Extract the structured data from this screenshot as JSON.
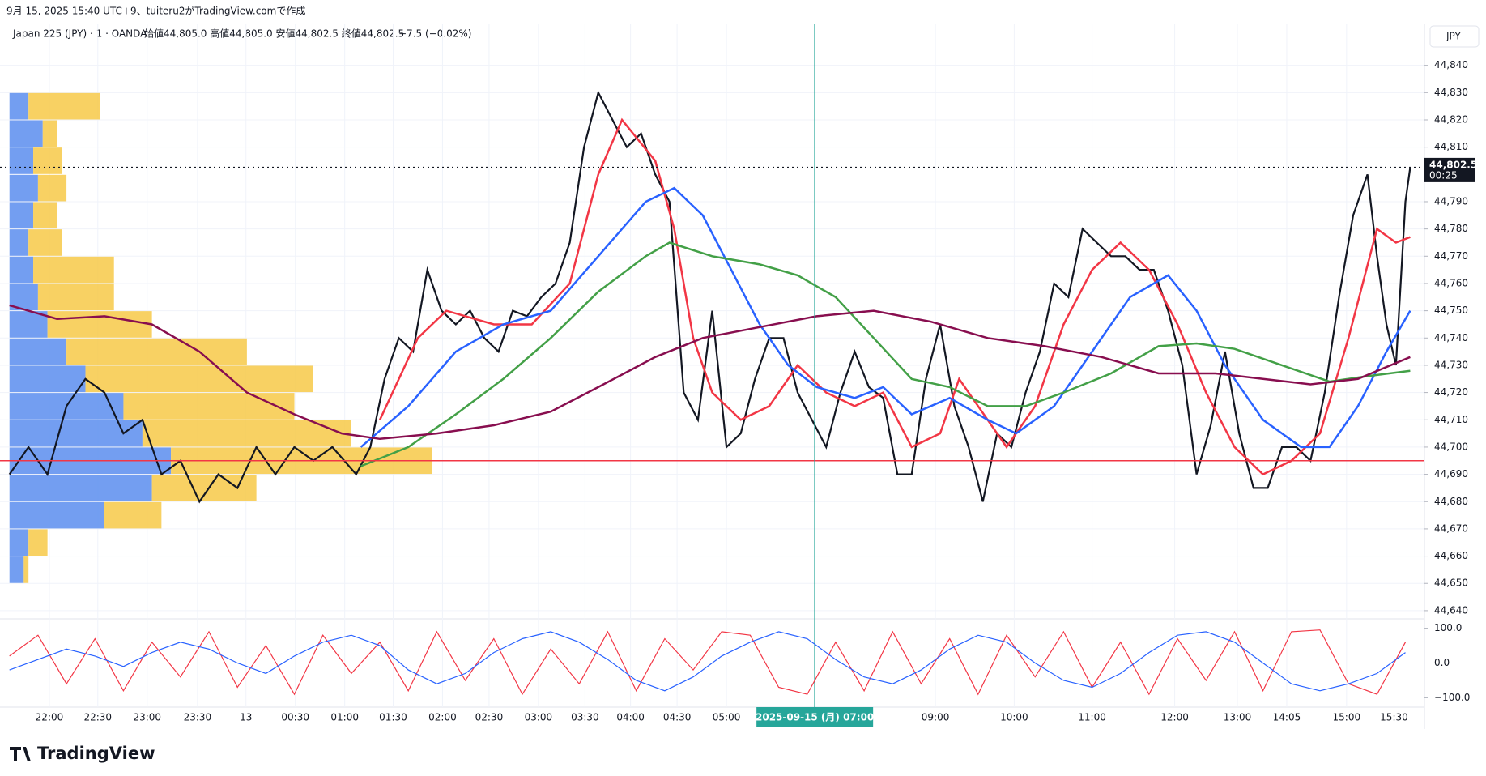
{
  "header": {
    "created": "9月 15, 2025 15:40 UTC+9、tuiteru2がTradingView.comで作成",
    "legend": "Japan 225 (JPY) · 1 · OANDA",
    "ohlc": "始値44,805.0 高値44,805.0 安値44,802.5 終値44,802.5",
    "change": "−7.5 (−0.02%)",
    "currency": "JPY",
    "brand": "TradingView"
  },
  "chart_data": [
    {
      "type": "line",
      "xlim": [
        0,
        1500
      ],
      "ylim": [
        44637,
        44850
      ],
      "yticks": [
        {
          "value": 44640,
          "label": "44,640"
        },
        {
          "value": 44650,
          "label": "44,650"
        },
        {
          "value": 44660,
          "label": "44,660"
        },
        {
          "value": 44670,
          "label": "44,670"
        },
        {
          "value": 44680,
          "label": "44,680"
        },
        {
          "value": 44690,
          "label": "44,690"
        },
        {
          "value": 44700,
          "label": "44,700"
        },
        {
          "value": 44710,
          "label": "44,710"
        },
        {
          "value": 44720,
          "label": "44,720"
        },
        {
          "value": 44730,
          "label": "44,730"
        },
        {
          "value": 44740,
          "label": "44,740"
        },
        {
          "value": 44750,
          "label": "44,750"
        },
        {
          "value": 44760,
          "label": "44,760"
        },
        {
          "value": 44770,
          "label": "44,770"
        },
        {
          "value": 44780,
          "label": "44,780"
        },
        {
          "value": 44790,
          "label": "44,790"
        },
        {
          "value": 44810,
          "label": "44,810"
        },
        {
          "value": 44820,
          "label": "44,820"
        },
        {
          "value": 44830,
          "label": "44,830"
        },
        {
          "value": 44840,
          "label": "44,840"
        }
      ],
      "xticks": [
        {
          "value": 52,
          "label": "22:00"
        },
        {
          "value": 103,
          "label": "22:30"
        },
        {
          "value": 155,
          "label": "23:00"
        },
        {
          "value": 208,
          "label": "23:30"
        },
        {
          "value": 259,
          "label": "13"
        },
        {
          "value": 311,
          "label": "00:30"
        },
        {
          "value": 363,
          "label": "01:00"
        },
        {
          "value": 414,
          "label": "01:30"
        },
        {
          "value": 466,
          "label": "02:00"
        },
        {
          "value": 515,
          "label": "02:30"
        },
        {
          "value": 567,
          "label": "03:00"
        },
        {
          "value": 616,
          "label": "03:30"
        },
        {
          "value": 664,
          "label": "04:00"
        },
        {
          "value": 713,
          "label": "04:30"
        },
        {
          "value": 765,
          "label": "05:00"
        },
        {
          "value": 985,
          "label": "09:00"
        },
        {
          "value": 1068,
          "label": "10:00"
        },
        {
          "value": 1150,
          "label": "11:00"
        },
        {
          "value": 1237,
          "label": "12:00"
        },
        {
          "value": 1303,
          "label": "13:00"
        },
        {
          "value": 1355,
          "label": "14:05"
        },
        {
          "value": 1418,
          "label": "15:00"
        },
        {
          "value": 1468,
          "label": "15:30"
        }
      ],
      "grid": true,
      "crosshair": {
        "x": 858,
        "label": "2025-09-15 (月)  07:00",
        "color": "#26a69a"
      },
      "last_price": {
        "value": 44802.5,
        "label": "44,802.5",
        "countdown": "00:25"
      },
      "level_line": {
        "value": 44695,
        "color": "#f23645"
      },
      "volume_profile": {
        "colors": [
          "#5b8def",
          "#f7c948"
        ],
        "levels": [
          44655,
          44665,
          44675,
          44685,
          44695,
          44705,
          44715,
          44725,
          44735,
          44745,
          44755,
          44765,
          44775,
          44785,
          44795,
          44805,
          44815,
          44825
        ],
        "step": 10,
        "down": [
          15,
          20,
          100,
          150,
          170,
          140,
          120,
          80,
          60,
          40,
          30,
          25,
          20,
          25,
          30,
          25,
          35,
          20
        ],
        "up": [
          5,
          20,
          60,
          110,
          275,
          220,
          180,
          240,
          190,
          110,
          80,
          85,
          35,
          25,
          30,
          30,
          15,
          75
        ]
      },
      "series": [
        {
          "color": "#131722",
          "x": [
            10,
            30,
            50,
            70,
            90,
            110,
            130,
            150,
            170,
            190,
            210,
            230,
            250,
            270,
            290,
            310,
            330,
            350,
            375,
            390,
            405,
            420,
            435,
            450,
            465,
            480,
            495,
            510,
            525,
            540,
            555,
            570,
            585,
            600,
            615,
            630,
            645,
            660,
            675,
            690,
            705,
            720,
            735,
            750,
            765,
            780,
            795,
            810,
            825,
            840,
            855,
            870,
            885,
            900,
            915,
            930,
            945,
            960,
            975,
            990,
            1005,
            1020,
            1035,
            1050,
            1065,
            1080,
            1095,
            1110,
            1125,
            1140,
            1155,
            1170,
            1185,
            1200,
            1215,
            1230,
            1245,
            1260,
            1275,
            1290,
            1305,
            1320,
            1335,
            1350,
            1365,
            1380,
            1395,
            1410,
            1425,
            1440,
            1450,
            1460,
            1470,
            1480,
            1485
          ],
          "values": [
            44690,
            44700,
            44690,
            44715,
            44725,
            44720,
            44705,
            44710,
            44690,
            44695,
            44680,
            44690,
            44685,
            44700,
            44690,
            44700,
            44695,
            44700,
            44690,
            44700,
            44725,
            44740,
            44735,
            44765,
            44750,
            44745,
            44750,
            44740,
            44735,
            44750,
            44748,
            44755,
            44760,
            44775,
            44810,
            44830,
            44820,
            44810,
            44815,
            44800,
            44790,
            44720,
            44710,
            44750,
            44700,
            44705,
            44725,
            44740,
            44740,
            44720,
            44710,
            44700,
            44720,
            44735,
            44722,
            44718,
            44690,
            44690,
            44725,
            44745,
            44715,
            44700,
            44680,
            44705,
            44700,
            44720,
            44735,
            44760,
            44755,
            44780,
            44775,
            44770,
            44770,
            44765,
            44765,
            44750,
            44730,
            44690,
            44708,
            44735,
            44705,
            44685,
            44685,
            44700,
            44700,
            44695,
            44720,
            44755,
            44785,
            44800,
            44770,
            44745,
            44730,
            44790,
            44802.5
          ]
        },
        {
          "color": "#f23645",
          "x": [
            400,
            440,
            470,
            520,
            560,
            600,
            630,
            655,
            690,
            710,
            730,
            750,
            780,
            810,
            840,
            870,
            900,
            930,
            960,
            990,
            1010,
            1040,
            1060,
            1090,
            1120,
            1150,
            1180,
            1210,
            1240,
            1270,
            1300,
            1330,
            1360,
            1390,
            1420,
            1450,
            1470,
            1485
          ],
          "values": [
            44710,
            44740,
            44750,
            44745,
            44745,
            44760,
            44800,
            44820,
            44805,
            44780,
            44740,
            44720,
            44710,
            44715,
            44730,
            44720,
            44715,
            44720,
            44700,
            44705,
            44725,
            44710,
            44700,
            44715,
            44745,
            44765,
            44775,
            44765,
            44745,
            44720,
            44700,
            44690,
            44695,
            44705,
            44740,
            44780,
            44775,
            44777
          ]
        },
        {
          "color": "#2962ff",
          "x": [
            380,
            430,
            480,
            530,
            580,
            630,
            680,
            710,
            740,
            770,
            800,
            830,
            860,
            900,
            930,
            960,
            1000,
            1040,
            1070,
            1110,
            1150,
            1190,
            1230,
            1260,
            1290,
            1330,
            1370,
            1400,
            1430,
            1460,
            1485
          ],
          "values": [
            44700,
            44715,
            44735,
            44745,
            44750,
            44770,
            44790,
            44795,
            44785,
            44765,
            44745,
            44730,
            44722,
            44718,
            44722,
            44712,
            44718,
            44710,
            44705,
            44715,
            44735,
            44755,
            44763,
            44750,
            44730,
            44710,
            44700,
            44700,
            44715,
            44735,
            44750
          ]
        },
        {
          "color": "#43a047",
          "x": [
            380,
            430,
            480,
            530,
            580,
            630,
            680,
            705,
            750,
            800,
            840,
            880,
            920,
            960,
            1000,
            1040,
            1080,
            1120,
            1170,
            1220,
            1260,
            1300,
            1350,
            1400,
            1440,
            1485
          ],
          "values": [
            44693,
            44700,
            44712,
            44725,
            44740,
            44757,
            44770,
            44775,
            44770,
            44767,
            44763,
            44755,
            44740,
            44725,
            44722,
            44715,
            44715,
            44720,
            44727,
            44737,
            44738,
            44736,
            44730,
            44724,
            44726,
            44728
          ]
        },
        {
          "color": "#880e4f",
          "x": [
            10,
            60,
            110,
            160,
            210,
            260,
            310,
            360,
            400,
            460,
            520,
            580,
            630,
            690,
            740,
            800,
            860,
            920,
            980,
            1040,
            1100,
            1160,
            1220,
            1280,
            1330,
            1380,
            1430,
            1485
          ],
          "values": [
            44752,
            44747,
            44748,
            44745,
            44735,
            44720,
            44712,
            44705,
            44703,
            44705,
            44708,
            44713,
            44722,
            44733,
            44740,
            44744,
            44748,
            44750,
            44746,
            44740,
            44737,
            44733,
            44727,
            44727,
            44725,
            44723,
            44725,
            44733
          ]
        }
      ]
    },
    {
      "type": "line",
      "xlim": [
        0,
        1500
      ],
      "ylim": [
        -127,
        127
      ],
      "yticks": [
        {
          "value": 100,
          "label": "100.0"
        },
        {
          "value": 0,
          "label": "0.0"
        },
        {
          "value": -100,
          "label": "−100.0"
        }
      ],
      "series": [
        {
          "color": "#f23645",
          "x": [
            10,
            40,
            70,
            100,
            130,
            160,
            190,
            220,
            250,
            280,
            310,
            340,
            370,
            400,
            430,
            460,
            490,
            520,
            550,
            580,
            610,
            640,
            670,
            700,
            730,
            760,
            790,
            820,
            850,
            880,
            910,
            940,
            970,
            1000,
            1030,
            1060,
            1090,
            1120,
            1150,
            1180,
            1210,
            1240,
            1270,
            1300,
            1330,
            1360,
            1390,
            1420,
            1450,
            1480
          ],
          "values": [
            20,
            80,
            -60,
            70,
            -80,
            60,
            -40,
            90,
            -70,
            50,
            -90,
            80,
            -30,
            60,
            -80,
            90,
            -50,
            70,
            -90,
            40,
            -60,
            90,
            -80,
            70,
            -20,
            90,
            80,
            -70,
            -90,
            60,
            -80,
            90,
            -60,
            70,
            -90,
            80,
            -40,
            90,
            -70,
            60,
            -90,
            70,
            -50,
            90,
            -80,
            90,
            95,
            -60,
            -90,
            60
          ]
        },
        {
          "color": "#2962ff",
          "x": [
            10,
            40,
            70,
            100,
            130,
            160,
            190,
            220,
            250,
            280,
            310,
            340,
            370,
            400,
            430,
            460,
            490,
            520,
            550,
            580,
            610,
            640,
            670,
            700,
            730,
            760,
            790,
            820,
            850,
            880,
            910,
            940,
            970,
            1000,
            1030,
            1060,
            1090,
            1120,
            1150,
            1180,
            1210,
            1240,
            1270,
            1300,
            1330,
            1360,
            1390,
            1420,
            1450,
            1480
          ],
          "values": [
            -20,
            10,
            40,
            20,
            -10,
            30,
            60,
            40,
            0,
            -30,
            20,
            60,
            80,
            50,
            -20,
            -60,
            -30,
            30,
            70,
            90,
            60,
            10,
            -50,
            -80,
            -40,
            20,
            60,
            90,
            70,
            10,
            -40,
            -60,
            -20,
            40,
            80,
            60,
            0,
            -50,
            -70,
            -30,
            30,
            80,
            90,
            60,
            0,
            -60,
            -80,
            -60,
            -30,
            30
          ]
        }
      ]
    }
  ]
}
